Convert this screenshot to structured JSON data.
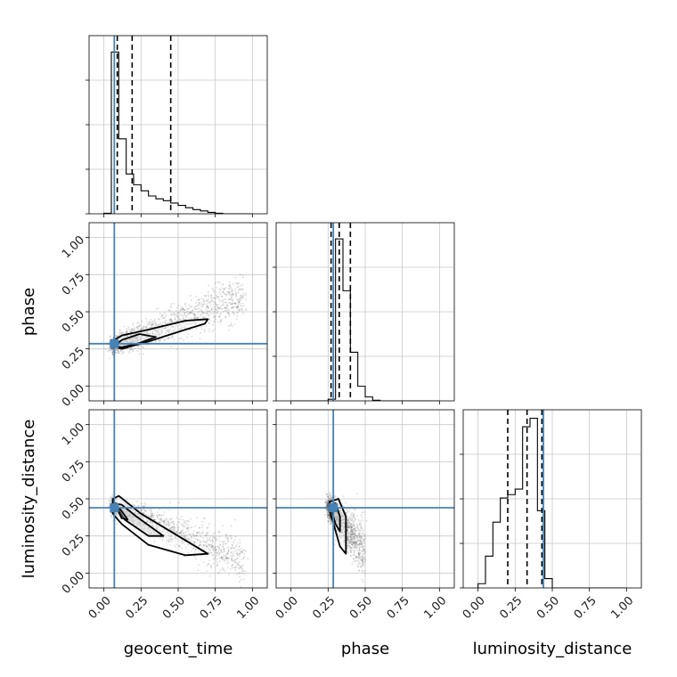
{
  "chart_data": {
    "type": "corner",
    "parameters": [
      "geocent_time",
      "phase",
      "luminosity_distance"
    ],
    "axis_range": [
      -0.1,
      1.1
    ],
    "ticks": [
      0.0,
      0.25,
      0.5,
      0.75,
      1.0
    ],
    "tick_labels": [
      "0.00",
      "0.25",
      "0.50",
      "0.75",
      "1.00"
    ],
    "grid": true,
    "colors": {
      "truth": "#4682b4",
      "line": "#000000",
      "grid": "#c8c8c8",
      "points": "#555555"
    },
    "truth_values": {
      "geocent_time": 0.07,
      "phase": 0.285,
      "luminosity_distance": 0.44
    },
    "quantiles": {
      "geocent_time": [
        0.09,
        0.19,
        0.45
      ],
      "phase": [
        0.27,
        0.325,
        0.4
      ],
      "luminosity_distance": [
        0.2,
        0.33,
        0.43
      ]
    },
    "histograms": {
      "geocent_time": {
        "bin_edges": [
          0.0,
          0.05,
          0.1,
          0.15,
          0.2,
          0.25,
          0.3,
          0.35,
          0.4,
          0.45,
          0.5,
          0.55,
          0.6,
          0.65,
          0.7,
          0.75,
          0.8,
          0.85,
          0.9,
          0.95,
          1.0
        ],
        "counts": [
          0.01,
          3.45,
          1.6,
          0.85,
          0.62,
          0.49,
          0.38,
          0.32,
          0.28,
          0.23,
          0.18,
          0.13,
          0.09,
          0.06,
          0.03,
          0.01,
          0.0,
          0.0,
          0.0,
          0.0
        ],
        "ymax": 3.8
      },
      "phase": {
        "bin_edges": [
          0.0,
          0.05,
          0.1,
          0.15,
          0.2,
          0.25,
          0.3,
          0.35,
          0.4,
          0.45,
          0.5,
          0.55,
          0.6,
          0.65,
          0.7,
          0.75,
          0.8,
          0.85,
          0.9,
          0.95,
          1.0
        ],
        "counts": [
          0.0,
          0.0,
          0.0,
          0.0,
          0.0,
          0.05,
          5.0,
          3.4,
          1.5,
          0.45,
          0.12,
          0.02,
          0.0,
          0.0,
          0.0,
          0.0,
          0.0,
          0.0,
          0.0,
          0.0
        ],
        "ymax": 5.5
      },
      "luminosity_distance": {
        "bin_edges": [
          0.0,
          0.05,
          0.1,
          0.15,
          0.2,
          0.25,
          0.3,
          0.35,
          0.4,
          0.45,
          0.5,
          0.55,
          0.6,
          0.65,
          0.7,
          0.75,
          0.8,
          0.85,
          0.9,
          0.95,
          1.0
        ],
        "counts": [
          0.1,
          0.75,
          1.55,
          2.12,
          2.2,
          2.33,
          3.8,
          4.0,
          1.82,
          0.22,
          0.0,
          0.0,
          0.0,
          0.0,
          0.0,
          0.0,
          0.0,
          0.0,
          0.0,
          0.0
        ],
        "ymax": 4.2
      }
    },
    "scatter_clouds": {
      "phase_vs_geocent_time": {
        "x_range": [
          0.05,
          0.95
        ],
        "y_trend": [
          0.27,
          0.6
        ],
        "spread": 0.05
      },
      "luminosity_distance_vs_geocent_time": {
        "x_range": [
          0.05,
          0.95
        ],
        "y_trend": [
          0.45,
          0.08
        ],
        "spread": 0.05
      },
      "luminosity_distance_vs_phase": {
        "x_range": [
          0.25,
          0.5
        ],
        "y_trend": [
          0.45,
          0.15
        ],
        "spread": 0.06
      }
    },
    "contours": {
      "phase_vs_geocent_time": [
        [
          [
            0.06,
            0.27
          ],
          [
            0.12,
            0.25
          ],
          [
            0.3,
            0.3
          ],
          [
            0.55,
            0.38
          ],
          [
            0.68,
            0.42
          ],
          [
            0.7,
            0.45
          ],
          [
            0.55,
            0.44
          ],
          [
            0.3,
            0.38
          ],
          [
            0.12,
            0.34
          ],
          [
            0.07,
            0.31
          ]
        ],
        [
          [
            0.07,
            0.27
          ],
          [
            0.12,
            0.26
          ],
          [
            0.24,
            0.29
          ],
          [
            0.35,
            0.33
          ],
          [
            0.24,
            0.35
          ],
          [
            0.12,
            0.31
          ]
        ]
      ],
      "luminosity_distance_vs_geocent_time": [
        [
          [
            0.06,
            0.5
          ],
          [
            0.1,
            0.52
          ],
          [
            0.25,
            0.4
          ],
          [
            0.5,
            0.25
          ],
          [
            0.7,
            0.13
          ],
          [
            0.55,
            0.12
          ],
          [
            0.3,
            0.19
          ],
          [
            0.12,
            0.33
          ],
          [
            0.06,
            0.4
          ]
        ],
        [
          [
            0.07,
            0.47
          ],
          [
            0.12,
            0.46
          ],
          [
            0.22,
            0.38
          ],
          [
            0.4,
            0.25
          ],
          [
            0.3,
            0.25
          ],
          [
            0.14,
            0.36
          ]
        ],
        [
          [
            0.08,
            0.45
          ],
          [
            0.11,
            0.43
          ],
          [
            0.16,
            0.36
          ],
          [
            0.12,
            0.37
          ]
        ]
      ],
      "luminosity_distance_vs_phase": [
        [
          [
            0.26,
            0.48
          ],
          [
            0.32,
            0.5
          ],
          [
            0.37,
            0.38
          ],
          [
            0.37,
            0.25
          ],
          [
            0.37,
            0.13
          ],
          [
            0.33,
            0.18
          ],
          [
            0.29,
            0.32
          ],
          [
            0.26,
            0.42
          ]
        ],
        [
          [
            0.27,
            0.46
          ],
          [
            0.3,
            0.47
          ],
          [
            0.33,
            0.38
          ],
          [
            0.33,
            0.28
          ],
          [
            0.3,
            0.33
          ],
          [
            0.28,
            0.4
          ]
        ]
      ]
    }
  }
}
